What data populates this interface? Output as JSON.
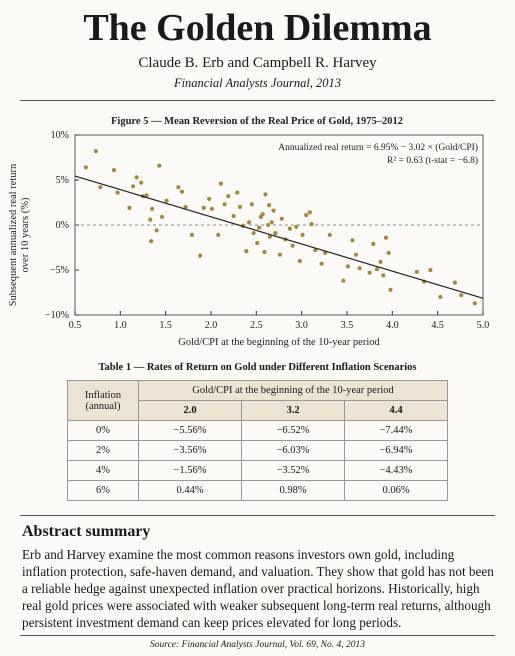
{
  "header": {
    "title": "The Golden Dilemma",
    "authors": "Claude B. Erb and Campbell R. Harvey",
    "journal": "Financial Analysts Journal, 2013"
  },
  "chart_data": {
    "type": "scatter",
    "title": "Figure 5 — Mean Reversion of the Real Price of Gold, 1975–2012",
    "x_label": "Gold/CPI at the beginning of the 10-year period",
    "y_label": "Subsequent annualized real return over 10 years (%)",
    "annotations": [
      "Annualized real return = 6.95% − 3.02 × (Gold/CPI)",
      "R² = 0.63 (t-stat = −6.8)"
    ],
    "color": "#a8863a",
    "line_color": "#222222",
    "x": [
      0.62,
      0.73,
      0.78,
      0.93,
      0.97,
      1.1,
      1.14,
      1.18,
      1.23,
      1.25,
      1.29,
      1.33,
      1.34,
      1.35,
      1.4,
      1.43,
      1.46,
      1.51,
      1.64,
      1.68,
      1.72,
      1.79,
      1.88,
      1.92,
      1.98,
      2.01,
      2.08,
      2.11,
      2.15,
      2.19,
      2.25,
      2.29,
      2.32,
      2.35,
      2.39,
      2.42,
      2.45,
      2.47,
      2.51,
      2.53,
      2.55,
      2.57,
      2.59,
      2.6,
      2.63,
      2.64,
      2.65,
      2.67,
      2.69,
      2.71,
      2.76,
      2.78,
      2.82,
      2.87,
      2.9,
      2.94,
      2.98,
      3.01,
      3.05,
      3.09,
      3.11,
      3.15,
      3.22,
      3.26,
      3.31,
      3.46,
      3.51,
      3.56,
      3.6,
      3.64,
      3.75,
      3.79,
      3.83,
      3.87,
      3.9,
      3.93,
      3.96,
      3.98,
      4.27,
      4.35,
      4.42,
      4.53,
      4.69,
      4.76,
      4.91
    ],
    "values": [
      6.4,
      8.2,
      4.2,
      6.1,
      3.6,
      1.9,
      4.3,
      5.3,
      4.7,
      3.2,
      3.3,
      0.6,
      -1.8,
      1.8,
      -0.6,
      6.6,
      0.9,
      2.7,
      4.2,
      3.7,
      2.0,
      -1.1,
      -3.4,
      1.9,
      2.9,
      1.8,
      -1.1,
      4.6,
      2.3,
      3.2,
      1.0,
      3.6,
      2.0,
      -0.1,
      -2.9,
      0.3,
      2.3,
      -0.9,
      -2.0,
      -0.3,
      0.9,
      1.2,
      -3.0,
      3.4,
      0.0,
      2.2,
      -1.3,
      0.3,
      1.6,
      -0.9,
      -3.3,
      0.7,
      -1.6,
      -0.4,
      -2.3,
      -0.2,
      -4.0,
      -1.1,
      1.1,
      1.4,
      0.1,
      -2.8,
      -4.3,
      -3.1,
      -1.1,
      -6.2,
      -4.6,
      -1.7,
      -3.3,
      -4.8,
      -5.3,
      -2.1,
      -4.9,
      -4.1,
      -5.6,
      -1.4,
      -3.1,
      -7.2,
      -5.2,
      -6.3,
      -5.0,
      -8.0,
      -6.4,
      -7.8,
      -8.7
    ],
    "fit_line": {
      "x": [
        0.5,
        5.0
      ],
      "values": [
        5.44,
        -8.15
      ]
    },
    "xlim": [
      0.5,
      5.0
    ],
    "xticks": [
      0.5,
      {
        "value": 1,
        "label": "1.0"
      },
      1.5,
      {
        "value": 2,
        "label": "2.0"
      },
      2.5,
      {
        "value": 3,
        "label": "3.0"
      },
      3.5,
      {
        "value": 4,
        "label": "4.0"
      },
      4.5,
      {
        "value": 5,
        "label": "5.0"
      }
    ],
    "ylim": [
      -10,
      10
    ],
    "yticks": [
      {
        "value": 10,
        "label": "10%"
      },
      {
        "value": 5,
        "label": "5%"
      },
      {
        "value": 0,
        "label": "0%"
      },
      {
        "value": -5,
        "label": "−5%"
      },
      {
        "value": -10,
        "label": "−10%"
      }
    ],
    "zero_line": true
  },
  "table": {
    "caption": "Table 1 — Rates of Return on Gold under Different Inflation Scenarios",
    "row_header": "Inflation (annual)",
    "group_header": "Gold/CPI at the beginning of the 10-year period",
    "columns": [
      "2.0",
      "3.2",
      "4.4"
    ],
    "rows": [
      [
        "0%",
        "−5.56%",
        "−6.52%",
        "−7.44%"
      ],
      [
        "2%",
        "−3.56%",
        "−6.03%",
        "−6.94%"
      ],
      [
        "4%",
        "−1.56%",
        "−3.52%",
        "−4.43%"
      ],
      [
        "6%",
        "0.44%",
        "0.98%",
        "0.06%"
      ]
    ]
  },
  "abstract": {
    "heading": "Abstract summary",
    "text": "Erb and Harvey examine the most common reasons investors own gold, including inflation protection, safe-haven demand, and valuation. They show that gold has not been a reliable hedge against unexpected inflation over practical horizons. Historically, high real gold prices were associated with weaker subsequent long-term real returns, although persistent investment demand can keep prices elevated for long periods."
  },
  "source": "Source: Financial Analysts Journal, Vol. 69, No. 4, 2013"
}
